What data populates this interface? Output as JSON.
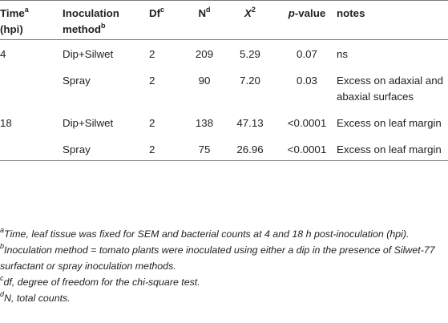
{
  "table": {
    "headers": {
      "time": "Time",
      "time_sup": "a",
      "time_unit": "(hpi)",
      "method": "Inoculation method",
      "method_sup": "b",
      "df": "Df",
      "df_sup": "c",
      "n": "N",
      "n_sup": "d",
      "chi": "X",
      "chi_sup": "2",
      "pvalue_p": "p",
      "pvalue_rest": "-value",
      "notes": "notes"
    },
    "rows": [
      {
        "time": "4",
        "method": "Dip+Silwet",
        "df": "2",
        "n": "209",
        "chi2": "5.29",
        "p": "0.07",
        "notes": "ns"
      },
      {
        "time": "",
        "method": "Spray",
        "df": "2",
        "n": "90",
        "chi2": "7.20",
        "p": "0.03",
        "notes": "Excess on adaxial and abaxial surfaces"
      },
      {
        "time": "18",
        "method": "Dip+Silwet",
        "df": "2",
        "n": "138",
        "chi2": "47.13",
        "p": "<0.0001",
        "notes": "Excess on leaf margin"
      },
      {
        "time": "",
        "method": "Spray",
        "df": "2",
        "n": "75",
        "chi2": "26.96",
        "p": "<0.0001",
        "notes": "Excess on leaf margin"
      }
    ]
  },
  "footnotes": [
    {
      "mark": "a",
      "text": "Time, leaf tissue was fixed for SEM and bacterial counts at 4 and 18 h post-inoculation (hpi)."
    },
    {
      "mark": "b",
      "text": "Inoculation method = tomato plants were inoculated using either a dip in the presence of Silwet-77 surfactant or spray inoculation methods."
    },
    {
      "mark": "c",
      "text": "df, degree of freedom for the chi-square test."
    },
    {
      "mark": "d",
      "text": "N, total counts."
    }
  ]
}
